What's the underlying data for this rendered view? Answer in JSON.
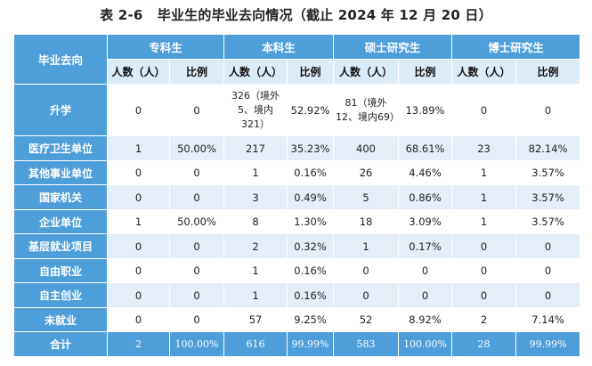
{
  "title": "表 2-6   毕业生的毕业去向情况（截止 2024 年 12 月 20 日）",
  "headers": {
    "corner": "毕业去向",
    "groups": [
      "专科生",
      "本科生",
      "硕士研究生",
      "博士研究生"
    ],
    "count_label": "人数（人）",
    "ratio_label": "比例"
  },
  "rows": [
    {
      "label": "升学",
      "zk_n": "0",
      "zk_p": "0",
      "bk_n": "326（境外5、境内321）",
      "bk_p": "52.92%",
      "ss_n": "81（境外12、境内69）",
      "ss_p": "13.89%",
      "bs_n": "0",
      "bs_p": "0"
    },
    {
      "label": "医疗卫生单位",
      "zk_n": "1",
      "zk_p": "50.00%",
      "bk_n": "217",
      "bk_p": "35.23%",
      "ss_n": "400",
      "ss_p": "68.61%",
      "bs_n": "23",
      "bs_p": "82.14%"
    },
    {
      "label": "其他事业单位",
      "zk_n": "0",
      "zk_p": "0",
      "bk_n": "1",
      "bk_p": "0.16%",
      "ss_n": "26",
      "ss_p": "4.46%",
      "bs_n": "1",
      "bs_p": "3.57%"
    },
    {
      "label": "国家机关",
      "zk_n": "0",
      "zk_p": "0",
      "bk_n": "3",
      "bk_p": "0.49%",
      "ss_n": "5",
      "ss_p": "0.86%",
      "bs_n": "1",
      "bs_p": "3.57%"
    },
    {
      "label": "企业单位",
      "zk_n": "1",
      "zk_p": "50.00%",
      "bk_n": "8",
      "bk_p": "1.30%",
      "ss_n": "18",
      "ss_p": "3.09%",
      "bs_n": "1",
      "bs_p": "3.57%"
    },
    {
      "label": "基层就业项目",
      "zk_n": "0",
      "zk_p": "0",
      "bk_n": "2",
      "bk_p": "0.32%",
      "ss_n": "1",
      "ss_p": "0.17%",
      "bs_n": "0",
      "bs_p": "0"
    },
    {
      "label": "自由职业",
      "zk_n": "0",
      "zk_p": "0",
      "bk_n": "1",
      "bk_p": "0.16%",
      "ss_n": "0",
      "ss_p": "0",
      "bs_n": "0",
      "bs_p": "0"
    },
    {
      "label": "自主创业",
      "zk_n": "0",
      "zk_p": "0",
      "bk_n": "1",
      "bk_p": "0.16%",
      "ss_n": "0",
      "ss_p": "0",
      "bs_n": "0",
      "bs_p": "0"
    },
    {
      "label": "未就业",
      "zk_n": "0",
      "zk_p": "0",
      "bk_n": "57",
      "bk_p": "9.25%",
      "ss_n": "52",
      "ss_p": "8.92%",
      "bs_n": "2",
      "bs_p": "7.14%"
    },
    {
      "label": "合计",
      "zk_n": "2",
      "zk_p": "100.00%",
      "bk_n": "616",
      "bk_p": "99.99%",
      "ss_n": "583",
      "ss_p": "100.00%",
      "bs_n": "28",
      "bs_p": "99.99%"
    }
  ],
  "colors": {
    "header_blue": "#4e9ed9",
    "subheader_light": "#dcebf8",
    "row_alt_blue": "#e4eef8"
  }
}
